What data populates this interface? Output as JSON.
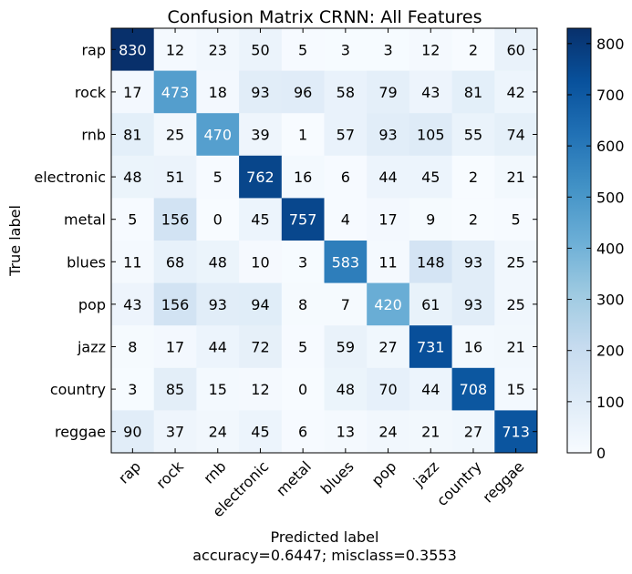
{
  "chart_data": {
    "type": "heatmap",
    "title": "Confusion Matrix CRNN: All Features",
    "xlabel": "Predicted label",
    "xlabel_sub": "accuracy=0.6447; misclass=0.3553",
    "ylabel": "True label",
    "x_categories": [
      "rap",
      "rock",
      "rnb",
      "electronic",
      "metal",
      "blues",
      "pop",
      "jazz",
      "country",
      "reggae"
    ],
    "y_categories": [
      "rap",
      "rock",
      "rnb",
      "electronic",
      "metal",
      "blues",
      "pop",
      "jazz",
      "country",
      "reggae"
    ],
    "values": [
      [
        830,
        12,
        23,
        50,
        5,
        3,
        3,
        12,
        2,
        60
      ],
      [
        17,
        473,
        18,
        93,
        96,
        58,
        79,
        43,
        81,
        42
      ],
      [
        81,
        25,
        470,
        39,
        1,
        57,
        93,
        105,
        55,
        74
      ],
      [
        48,
        51,
        5,
        762,
        16,
        6,
        44,
        45,
        2,
        21
      ],
      [
        5,
        156,
        0,
        45,
        757,
        4,
        17,
        9,
        2,
        5
      ],
      [
        11,
        68,
        48,
        10,
        3,
        583,
        11,
        148,
        93,
        25
      ],
      [
        43,
        156,
        93,
        94,
        8,
        7,
        420,
        61,
        93,
        25
      ],
      [
        8,
        17,
        44,
        72,
        5,
        59,
        27,
        731,
        16,
        21
      ],
      [
        3,
        85,
        15,
        12,
        0,
        48,
        70,
        44,
        708,
        15
      ],
      [
        90,
        37,
        24,
        45,
        6,
        13,
        24,
        21,
        27,
        713
      ]
    ],
    "colorbar": {
      "range": [
        0,
        830
      ],
      "ticks": [
        0,
        100,
        200,
        300,
        400,
        500,
        600,
        700,
        800
      ],
      "colormap": "Blues",
      "colors": [
        "#f7fbff",
        "#deebf7",
        "#c6dbef",
        "#9ecae1",
        "#6baed6",
        "#4292c6",
        "#2171b5",
        "#08519c",
        "#08306b"
      ]
    },
    "text_threshold": 415,
    "text_color_dark": "#000000",
    "text_color_light": "#ffffff"
  }
}
